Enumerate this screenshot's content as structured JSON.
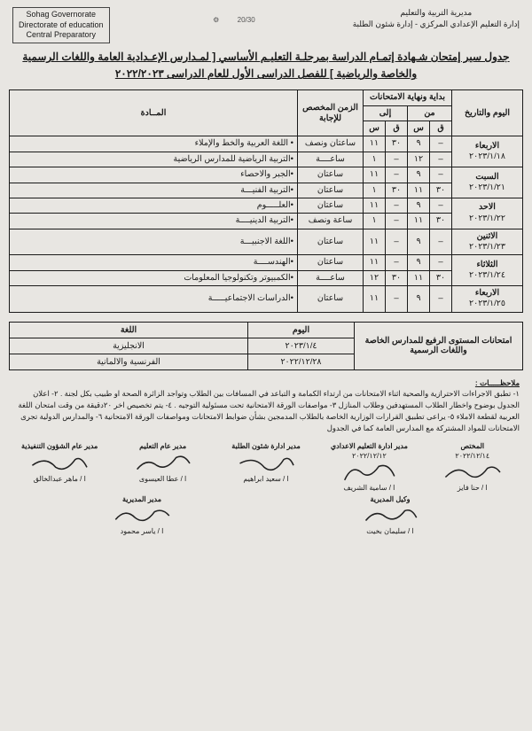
{
  "header": {
    "right_lines": [
      "مديرية التربية والتعليم",
      "إدارة التعليم الإعدادي المركزي - إدارة شئون الطلبة"
    ],
    "left_lines": [
      "Sohag Governorate",
      "Directorate of education",
      "Central Preparatory"
    ],
    "logo_text_1": "20/30",
    "logo_text_2": "⚙"
  },
  "title": "جدول سير إمتحان شـهادة إتمـام الدراسة بمرحلـة التعليـم الأساسي  [ لمـدارس الإعـدادية العامة واللغات الرسمية  والخاصة  والرياضية ] للفصل الدراسى الأول للعام الدراسى  ٢٠٢٢/٢٠٢٣",
  "table": {
    "head": {
      "date": "اليوم والتاريخ",
      "times": "بداية ونهاية الامتحانات",
      "from": "من",
      "to": "إلى",
      "q": "ق",
      "s": "س",
      "duration": "الزمن المخصص للإجابة",
      "subject": "المــادة"
    },
    "rows": [
      {
        "day": "الاربعاء",
        "date": "٢٠٢٣/١/١٨",
        "fq": "–",
        "fs": "٩",
        "tq": "٣٠",
        "ts": "١١",
        "dur": "ساعتان ونصف",
        "subj": "• اللغة العربية والخط والإملاء",
        "fq2": "–",
        "fs2": "١٢",
        "tq2": "–",
        "ts2": "١",
        "dur2": "ساعــــة",
        "subj2": "•التربية الرياضية للمدارس الرياضية"
      },
      {
        "day": "السبت",
        "date": "٢٠٢٣/١/٢١",
        "fq": "–",
        "fs": "٩",
        "tq": "–",
        "ts": "١١",
        "dur": "ساعتان",
        "subj": "•الجبر والاحصاء",
        "fq2": "٣٠",
        "fs2": "١١",
        "tq2": "٣٠",
        "ts2": "١",
        "dur2": "ساعتان",
        "subj2": "•التربية الفنيـــة"
      },
      {
        "day": "الاحد",
        "date": "٢٠٢٣/١/٢٢",
        "fq": "–",
        "fs": "٩",
        "tq": "–",
        "ts": "١١",
        "dur": "ساعتان",
        "subj": "•العلـــــوم",
        "fq2": "٣٠",
        "fs2": "١١",
        "tq2": "–",
        "ts2": "١",
        "dur2": "ساعة ونصف",
        "subj2": "•التربية الدينيــــة"
      },
      {
        "day": "الاثنين",
        "date": "٢٠٢٣/١/٢٣",
        "fq": "–",
        "fs": "٩",
        "tq": "–",
        "ts": "١١",
        "dur": "ساعتان",
        "subj": "•اللغة الاجنبيـــة"
      },
      {
        "day": "الثلاثاء",
        "date": "٢٠٢٣/١/٢٤",
        "fq": "–",
        "fs": "٩",
        "tq": "–",
        "ts": "١١",
        "dur": "ساعتان",
        "subj": "•الهندســــة",
        "fq2": "٣٠",
        "fs2": "١١",
        "tq2": "٣٠",
        "ts2": "١٢",
        "dur2": "ساعــــة",
        "subj2": "•الكمبيوتر وتكنولوجيا المعلومات"
      },
      {
        "day": "الاربعاء",
        "date": "٢٠٢٣/١/٢٥",
        "fq": "–",
        "fs": "٩",
        "tq": "–",
        "ts": "١١",
        "dur": "ساعتان",
        "subj": "•الدراسات الاجتماعيـــــة"
      }
    ]
  },
  "secondary": {
    "caption": "امتحانات المستوى الرفيع للمدارس الخاصة واللغات الرسمية",
    "head_day": "اليوم",
    "head_lang": "اللغة",
    "rows": [
      {
        "day": "٢٠٢٣/١/٤",
        "lang": "الانجليزية"
      },
      {
        "day": "٢٠٢٢/١٢/٢٨",
        "lang": "الفرنسية والالمانية"
      }
    ]
  },
  "notes": {
    "title": "ملاحظـــــات :",
    "items": [
      "١- تطبق الاجراءات الاحترازية والصحية اثناء الامتحانات من ارتداء الكمامة و التباعد في المسافات بين الطلاب وتواجد الزائرة الصحة او طبيب بكل لجنة .",
      "٢- اعلان الجدول بوضوح واخطار الطلاب المستهدفين وطلاب المنازل ٣- مواصفات الورقة الامتحانية تحت مسئولية التوجيه .",
      "٤- يتم تخصيص اخر ٢٠دقيقة من وقت امتحان اللغة العربية لقطعة الاملاء",
      "٥- يراعى تطبيق القرارات الوزارية الخاصة بالطلاب المدمجين بشأن ضوابط الامتحانات ومواصفات الورقة الامتحانية",
      "٦- والمدارس الدولية تجرى الامتحانات للمواد المشتركة مع المدارس العامة كما في الجدول"
    ]
  },
  "sig": {
    "s1": {
      "title": "المختص",
      "name": "ا / حنا فايز",
      "date": "٢٠٢٢/١٢/١٤"
    },
    "s2": {
      "title": "مدير ادارة التعليم الاعدادي",
      "name": "ا / سامية الشريف",
      "date": "٢٠٢٢/١٢/١٢"
    },
    "s3": {
      "title": "مدير ادارة شئون الطلبة",
      "name": "ا / سعيد ابراهيم"
    },
    "s4": {
      "title": "مدير عام التعليم",
      "name": "ا / عطا العيسوى"
    },
    "s5": {
      "title": "مدير عام الشؤون التنفيذية",
      "name": "ا / ماهر عبدالخالق"
    },
    "b1": {
      "title": "وكيل المديرية",
      "name": "ا / سليمان بخيت"
    },
    "b2": {
      "title": "مدير المديرية",
      "name": "ا / ياسر محمود"
    }
  }
}
